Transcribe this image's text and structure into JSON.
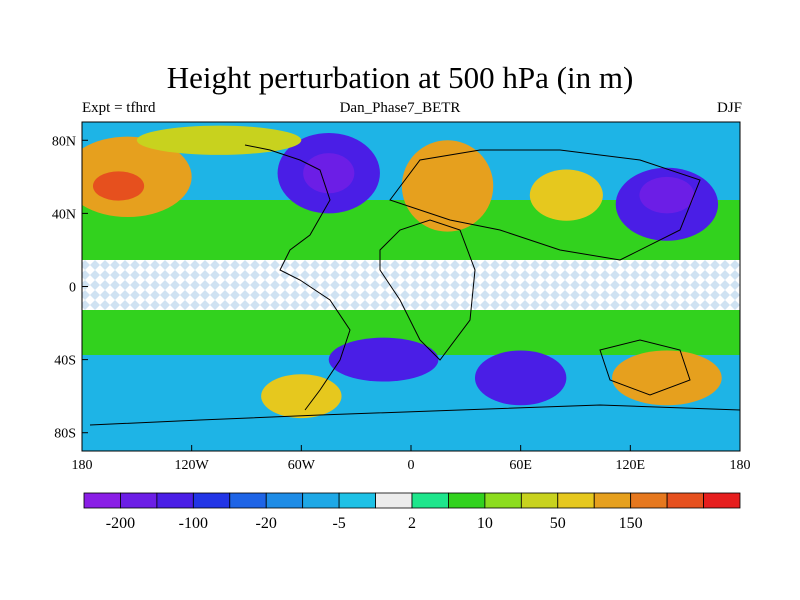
{
  "title": "Height perturbation at 500 hPa (in m)",
  "subtitle_left": "Expt = tfhrd",
  "subtitle_center": "Dan_Phase7_BETR",
  "subtitle_right": "DJF",
  "axes": {
    "lon_ticks": [
      "180",
      "120W",
      "60W",
      "0",
      "60E",
      "120E",
      "180"
    ],
    "lat_ticks": [
      "80N",
      "40N",
      "0",
      "40S",
      "80S"
    ]
  },
  "colorbar": {
    "colors": [
      "#8a1ee6",
      "#6c1ee6",
      "#4a1ee6",
      "#2235e6",
      "#1e64e6",
      "#1e8ce6",
      "#1ea8e6",
      "#1ec1e6",
      "#ececec",
      "#1ee68c",
      "#32d21e",
      "#8cdc1e",
      "#c8d21e",
      "#e6c81e",
      "#e6a01e",
      "#e6781e",
      "#e6501e",
      "#e61e1e"
    ],
    "labels": [
      "-200",
      "-100",
      "-20",
      "-5",
      "2",
      "10",
      "50",
      "150"
    ]
  },
  "map_blobs": [
    {
      "lon": -155,
      "lat": 60,
      "rx": 35,
      "ry": 22,
      "level": 14
    },
    {
      "lon": -160,
      "lat": 55,
      "rx": 14,
      "ry": 8,
      "level": 16
    },
    {
      "lon": -45,
      "lat": 62,
      "rx": 28,
      "ry": 22,
      "level": 2
    },
    {
      "lon": -45,
      "lat": 62,
      "rx": 14,
      "ry": 11,
      "level": 1
    },
    {
      "lon": 20,
      "lat": 55,
      "rx": 25,
      "ry": 25,
      "level": 14
    },
    {
      "lon": 85,
      "lat": 50,
      "rx": 20,
      "ry": 14,
      "level": 13
    },
    {
      "lon": 140,
      "lat": 45,
      "rx": 28,
      "ry": 20,
      "level": 2
    },
    {
      "lon": 140,
      "lat": 50,
      "rx": 15,
      "ry": 10,
      "level": 1
    },
    {
      "lon": -105,
      "lat": 80,
      "rx": 45,
      "ry": 8,
      "level": 12
    },
    {
      "lon": -15,
      "lat": -40,
      "rx": 30,
      "ry": 12,
      "level": 2
    },
    {
      "lon": 60,
      "lat": -50,
      "rx": 25,
      "ry": 15,
      "level": 2
    },
    {
      "lon": 140,
      "lat": -50,
      "rx": 30,
      "ry": 15,
      "level": 14
    },
    {
      "lon": -60,
      "lat": -60,
      "rx": 22,
      "ry": 12,
      "level": 13
    }
  ]
}
